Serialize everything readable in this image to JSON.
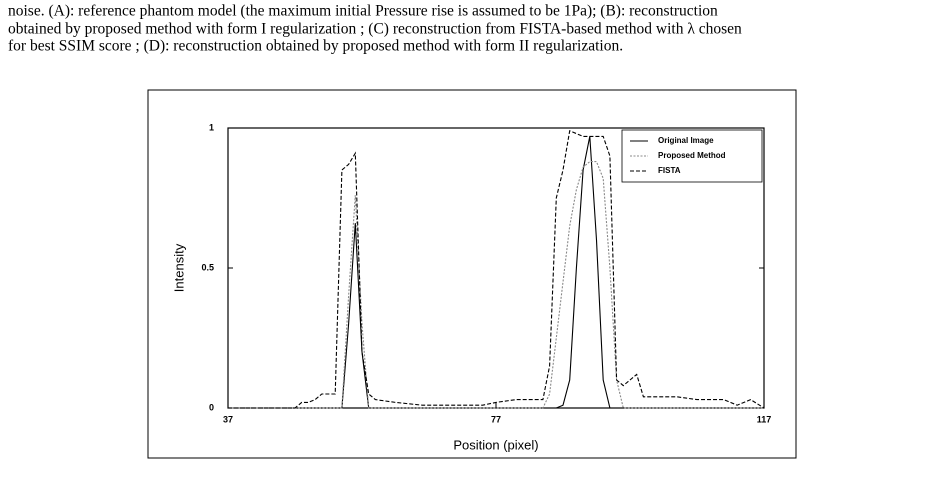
{
  "caption": {
    "lines": [
      "noise. (A): reference phantom model (the maximum initial Pressure rise is assumed to be 1Pa); (B): reconstruction",
      "obtained by proposed method with form I regularization ; (C) reconstruction from FISTA-based method with λ chosen",
      "for best SSIM score ; (D): reconstruction obtained by proposed method with form II regularization."
    ]
  },
  "chart_data": {
    "type": "line",
    "xlabel": "Position (pixel)",
    "ylabel": "Intensity",
    "xlim": [
      37,
      117
    ],
    "xticks": [
      37,
      77,
      117
    ],
    "ylim": [
      0,
      1
    ],
    "yticks": [
      0,
      0.5,
      1
    ],
    "legend": "upper-right",
    "series": [
      {
        "name": "Original Image",
        "color": "#000000",
        "dash": "solid",
        "x": [
          37,
          54,
          55,
          56,
          57,
          58,
          86,
          87,
          88,
          89,
          90,
          91,
          92,
          93,
          94,
          117
        ],
        "values": [
          0,
          0,
          0.3,
          0.66,
          0.2,
          0,
          0,
          0.01,
          0.1,
          0.5,
          0.85,
          0.97,
          0.6,
          0.1,
          0,
          0
        ]
      },
      {
        "name": "Proposed Method",
        "color": "#888888",
        "dash": "dotted",
        "x": [
          37,
          54,
          55,
          56,
          57,
          58,
          84,
          85,
          86,
          87,
          88,
          89,
          90,
          91,
          92,
          93,
          94,
          95,
          96,
          117
        ],
        "values": [
          0,
          0,
          0.4,
          0.76,
          0.3,
          0,
          0,
          0.05,
          0.25,
          0.45,
          0.65,
          0.78,
          0.86,
          0.88,
          0.88,
          0.82,
          0.5,
          0.1,
          0,
          0
        ]
      },
      {
        "name": "FISTA",
        "color": "#000000",
        "dash": "dashed",
        "x": [
          37,
          47,
          48,
          49,
          50,
          51,
          53,
          54,
          55,
          56,
          57,
          58,
          59,
          62,
          66,
          75,
          77,
          80,
          84,
          85,
          86,
          87,
          88,
          89,
          90,
          93,
          94,
          95,
          96,
          97,
          98,
          99,
          104,
          107,
          111,
          113,
          115,
          117
        ],
        "values": [
          0,
          0,
          0.02,
          0.02,
          0.03,
          0.05,
          0.05,
          0.85,
          0.87,
          0.91,
          0.2,
          0.05,
          0.03,
          0.02,
          0.01,
          0.01,
          0.02,
          0.03,
          0.03,
          0.15,
          0.75,
          0.85,
          0.99,
          0.98,
          0.97,
          0.97,
          0.9,
          0.1,
          0.08,
          0.1,
          0.12,
          0.04,
          0.04,
          0.03,
          0.03,
          0.01,
          0.03,
          0
        ]
      }
    ]
  }
}
